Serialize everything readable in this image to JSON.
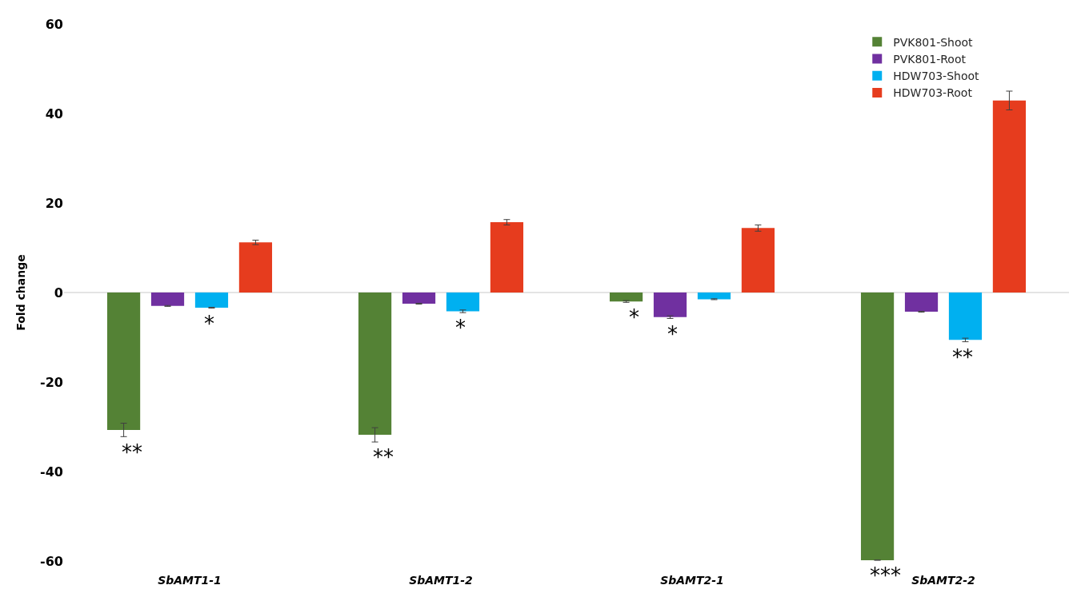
{
  "chart_data": {
    "type": "bar",
    "ylabel": "Fold change",
    "categories": [
      "SbAMT1-1",
      "SbAMT1-2",
      "SbAMT2-1",
      "SbAMT2-2"
    ],
    "series": [
      {
        "name": "PVK801-Shoot",
        "color": "#548235",
        "values": [
          -30.7,
          -31.8,
          -2.0,
          -59.8
        ],
        "errors": [
          1.5,
          1.6,
          0.2,
          null
        ]
      },
      {
        "name": "PVK801-Root",
        "color": "#7030a0",
        "values": [
          -3.0,
          -2.5,
          -5.5,
          -4.3
        ],
        "errors": [
          0.1,
          0.1,
          0.3,
          0.1
        ]
      },
      {
        "name": "HDW703-Shoot",
        "color": "#00b0f0",
        "values": [
          -3.4,
          -4.2,
          -1.5,
          -10.6
        ],
        "errors": [
          0.1,
          0.3,
          0.1,
          0.4
        ]
      },
      {
        "name": "HDW703-Root",
        "color": "#e63c1e",
        "values": [
          11.2,
          15.7,
          14.4,
          42.9
        ],
        "errors": [
          0.5,
          0.6,
          0.7,
          2.1
        ]
      }
    ],
    "annotations": [
      "**",
      "*",
      "**",
      "*",
      "*",
      "*",
      "***",
      "**"
    ],
    "ylim": [
      -60,
      60
    ],
    "yticks": [
      -60,
      -40,
      -20,
      0,
      20,
      40,
      60
    ],
    "ref_lines": [
      {
        "axis": "y",
        "value": 0,
        "color": "#c8c8c8"
      }
    ],
    "grid": false,
    "legend": "top right"
  }
}
